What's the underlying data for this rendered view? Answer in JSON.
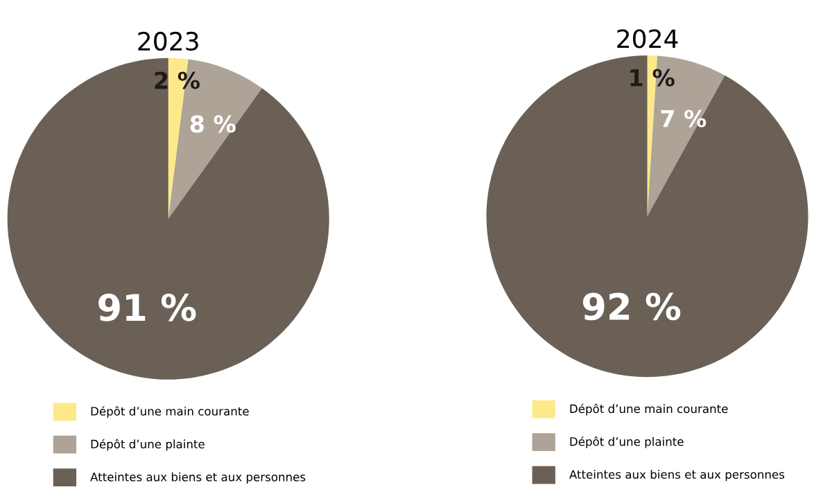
{
  "chart_data": [
    {
      "type": "pie",
      "title": "2023",
      "categories": [
        "Dépôt d’une main courante",
        "Dépôt d’une plainte",
        "Atteintes aux biens et aux personnes"
      ],
      "values": [
        2,
        8,
        91
      ],
      "colors": [
        "#fde98a",
        "#ada397",
        "#6a6055"
      ],
      "value_labels": [
        "2 %",
        "8 %",
        "91 %"
      ],
      "legend": "bottom"
    },
    {
      "type": "pie",
      "title": "2024",
      "categories": [
        "Dépôt d’une main courante",
        "Dépôt d’une plainte",
        "Atteintes aux biens et aux personnes"
      ],
      "values": [
        1,
        7,
        92
      ],
      "colors": [
        "#fde98a",
        "#ada397",
        "#6a6055"
      ],
      "value_labels": [
        "1 %",
        "7 %",
        "92 %"
      ],
      "legend": "bottom"
    }
  ]
}
